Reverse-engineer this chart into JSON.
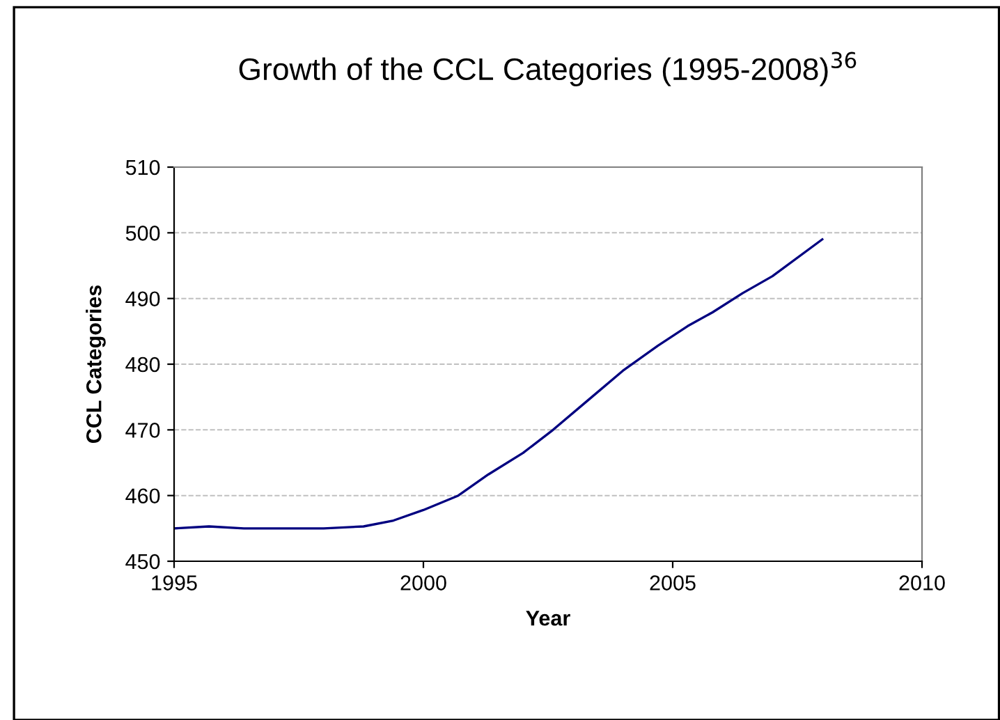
{
  "chart_data": {
    "type": "line",
    "title": "Growth of the CCL Categories (1995-2008)$^{36}$",
    "xlabel": "Year",
    "ylabel": "CCL Categories",
    "x": [
      1995,
      1995.7,
      1996.4,
      1998,
      1998.8,
      1999.4,
      2000,
      2000.7,
      2001.3,
      2002,
      2002.6,
      2003.3,
      2004,
      2004.7,
      2005.3,
      2005.8,
      2006.4,
      2007,
      2008
    ],
    "series": [
      {
        "color": "#000080",
        "values": [
          455,
          455.3,
          455,
          455,
          455.3,
          456.2,
          457.8,
          460,
          463.2,
          466.5,
          470,
          474.5,
          479,
          482.8,
          485.8,
          487.9,
          490.8,
          493.4,
          499
        ]
      }
    ],
    "xlim": [
      1995,
      2010
    ],
    "xticks": [
      1995,
      2000,
      2005,
      2010
    ],
    "ylim": [
      450,
      510
    ],
    "yticks": [
      450,
      460,
      470,
      480,
      490,
      500,
      510
    ],
    "grid": "y",
    "legend": false,
    "marker": "none",
    "line_style": "solid"
  }
}
